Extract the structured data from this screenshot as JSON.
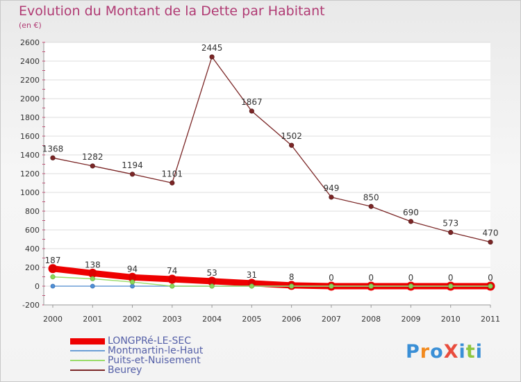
{
  "title": "Evolution du Montant de la Dette par Habitant",
  "subtitle": "(en €)",
  "logo": {
    "text": "ProXiti",
    "colors": [
      "#3a8fd6",
      "#f28a1e",
      "#3a8fd6",
      "#e94c3d",
      "#3a8fd6",
      "#8dc63f",
      "#3a8fd6"
    ]
  },
  "chart_data": {
    "type": "line",
    "title": "Evolution du Montant de la Dette par Habitant",
    "ylabel": "(en €)",
    "xlabel": "",
    "x": [
      "2000",
      "2001",
      "2002",
      "2003",
      "2004",
      "2005",
      "2006",
      "2007",
      "2008",
      "2009",
      "2010",
      "2011"
    ],
    "ylim": [
      -200,
      2600
    ],
    "yticks": [
      -200,
      0,
      200,
      400,
      600,
      800,
      1000,
      1200,
      1400,
      1600,
      1800,
      2000,
      2200,
      2400,
      2600
    ],
    "grid": true,
    "legend_position": "bottom-left",
    "series": [
      {
        "name": "LONGPRé-LE-SEC",
        "color": "#ee0000",
        "values": [
          187,
          138,
          94,
          74,
          53,
          31,
          8,
          0,
          0,
          0,
          0,
          0
        ],
        "labeled": true
      },
      {
        "name": "Montmartin-le-Haut",
        "color": "#6b9ed6",
        "values": [
          0,
          0,
          0,
          0,
          0,
          0,
          0,
          0,
          0,
          0,
          0,
          0
        ],
        "labeled": false
      },
      {
        "name": "Puits-et-Nuisement",
        "color": "#9adc6a",
        "values": [
          99,
          79,
          44,
          0,
          0,
          0,
          0,
          0,
          0,
          0,
          0,
          0
        ],
        "labeled": false
      },
      {
        "name": "Beurey",
        "color": "#7b2626",
        "values": [
          1368,
          1282,
          1194,
          1101,
          2445,
          1867,
          1502,
          949,
          850,
          690,
          573,
          470
        ],
        "labeled": true
      }
    ]
  }
}
